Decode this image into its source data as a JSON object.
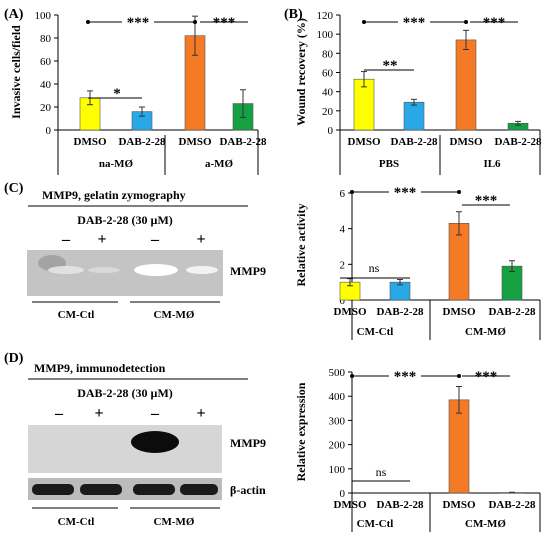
{
  "colors": {
    "yellow": "#ffff00",
    "blue": "#29a8e8",
    "orange": "#f47a25",
    "green": "#16a044",
    "error": "#333333",
    "axis": "#000000",
    "blot_bg": "#c9c9c9"
  },
  "chart_data": [
    {
      "panel": "(A)",
      "type": "bar",
      "ylabel": "Invasive cells/field",
      "ylim": [
        0,
        100
      ],
      "yticks": [
        0,
        20,
        40,
        60,
        80,
        100
      ],
      "categories": [
        "DMSO",
        "DAB-2-28",
        "DMSO",
        "DAB-2-28"
      ],
      "groups": [
        "na-MØ",
        "a-MØ"
      ],
      "values": [
        28,
        16,
        82,
        23
      ],
      "errors": [
        6,
        4,
        17,
        12
      ],
      "bar_colors": [
        "yellow",
        "blue",
        "orange",
        "green"
      ],
      "annotations": [
        "*",
        "***",
        "***"
      ]
    },
    {
      "panel": "(B)",
      "type": "bar",
      "ylabel": "Wound recovery (%)",
      "ylim": [
        0,
        120
      ],
      "yticks": [
        0,
        20,
        40,
        60,
        80,
        100,
        120
      ],
      "categories": [
        "DMSO",
        "DAB-2-28",
        "DMSO",
        "DAB-2-28"
      ],
      "groups": [
        "PBS",
        "IL6"
      ],
      "values": [
        53,
        29,
        94,
        7
      ],
      "errors": [
        8,
        3,
        10,
        2
      ],
      "bar_colors": [
        "yellow",
        "blue",
        "orange",
        "green"
      ],
      "annotations": [
        "**",
        "***",
        "***"
      ]
    },
    {
      "panel": "(C)",
      "type": "bar",
      "ylabel": "Relative activity",
      "ylim": [
        0,
        6
      ],
      "yticks": [
        0,
        2,
        4,
        6
      ],
      "categories": [
        "DMSO",
        "DAB-2-28",
        "DMSO",
        "DAB-2-28"
      ],
      "groups": [
        "CM-Ctl",
        "CM-MØ"
      ],
      "values": [
        1.0,
        1.0,
        4.3,
        1.9
      ],
      "errors": [
        0.2,
        0.15,
        0.65,
        0.3
      ],
      "bar_colors": [
        "yellow",
        "blue",
        "orange",
        "green"
      ],
      "annotations": [
        "ns",
        "***",
        "***"
      ]
    },
    {
      "panel": "(D)",
      "type": "bar",
      "ylabel": "Relative expression",
      "ylim": [
        0,
        500
      ],
      "yticks": [
        0,
        100,
        200,
        300,
        400,
        500
      ],
      "categories": [
        "DMSO",
        "DAB-2-28",
        "DMSO",
        "DAB-2-28"
      ],
      "groups": [
        "CM-Ctl",
        "CM-MØ"
      ],
      "values": [
        0,
        0,
        385,
        2
      ],
      "errors": [
        0,
        0,
        55,
        1
      ],
      "bar_colors": [
        "yellow",
        "blue",
        "orange",
        "green"
      ],
      "annotations": [
        "ns",
        "***",
        "***"
      ]
    }
  ],
  "blots": {
    "C": {
      "label": "(C)",
      "title": "MMP9, gelatin zymography",
      "treatment": "DAB-2-28 (30 µM)",
      "lanes": [
        "–",
        "+",
        "–",
        "+"
      ],
      "band_label": "MMP9",
      "groups": [
        "CM-Ctl",
        "CM-MØ"
      ]
    },
    "D": {
      "label": "(D)",
      "title": "MMP9, immunodetection",
      "treatment": "DAB-2-28 (30 µM)",
      "lanes": [
        "–",
        "+",
        "–",
        "+"
      ],
      "band_label_top": "MMP9",
      "band_label_bottom": "β-actin",
      "groups": [
        "CM-Ctl",
        "CM-MØ"
      ]
    }
  }
}
